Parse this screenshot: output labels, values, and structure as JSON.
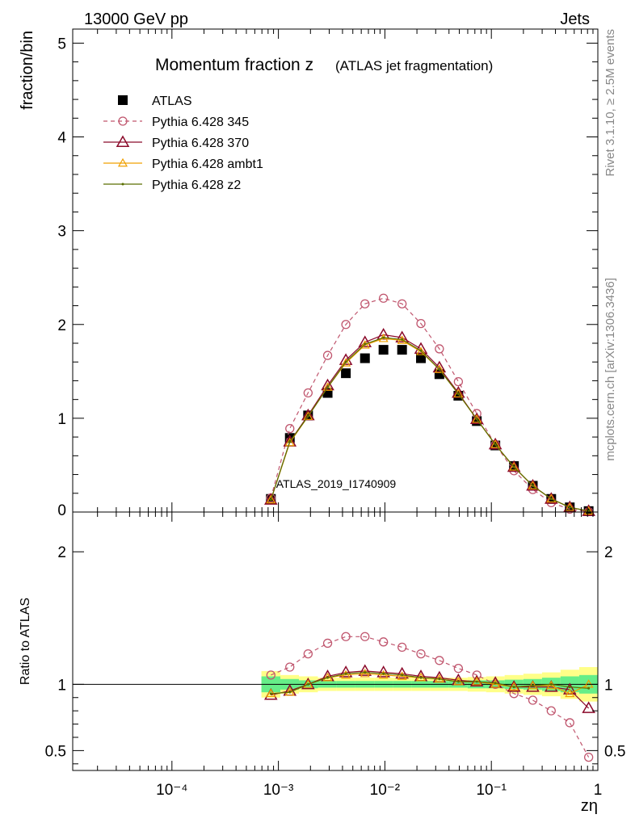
{
  "header": {
    "left": "13000 GeV pp",
    "right": "Jets",
    "side_rivet": "Rivet 3.1.10, ≥ 2.5M events",
    "side_mcplots": "mcplots.cern.ch [arXiv:1306.3436]",
    "watermark": "ATLAS_2019_I1740909"
  },
  "chart_data": {
    "type": "line",
    "title_main": "Momentum fraction z",
    "title_sub": "(ATLAS jet fragmentation)",
    "ylabel": "fraction/bin",
    "ratio_ylabel": "Ratio to ATLAS",
    "xlabel": "zη",
    "xscale": "log",
    "xlim": [
      1.17e-05,
      1.0
    ],
    "ylim": [
      0,
      5.15
    ],
    "ratio_ylim": [
      0.35,
      2.3
    ],
    "x_tick_labels": [
      "10⁻⁴",
      "10⁻³",
      "10⁻²",
      "10⁻¹",
      "1"
    ],
    "y_tick_labels": [
      "1",
      "2",
      "3",
      "4",
      "5"
    ],
    "y_zero_label": "0",
    "ratio_tick_labels": [
      "0.5",
      "1",
      "2"
    ],
    "x": [
      0.00085,
      0.00128,
      0.0019,
      0.0029,
      0.0043,
      0.0065,
      0.0097,
      0.0145,
      0.0218,
      0.0325,
      0.049,
      0.073,
      0.109,
      0.163,
      0.245,
      0.365,
      0.545,
      0.82
    ],
    "series": [
      {
        "name": "ATLAS",
        "color": "#000000",
        "marker": "square",
        "values": [
          0.14,
          0.79,
          1.03,
          1.27,
          1.48,
          1.64,
          1.73,
          1.73,
          1.64,
          1.47,
          1.24,
          0.97,
          0.71,
          0.49,
          0.28,
          0.14,
          0.05,
          0.01
        ]
      },
      {
        "name": "Pythia 6.428 345",
        "color": "#c0566e",
        "marker": "circle",
        "dash": true,
        "values": [
          0.15,
          0.89,
          1.27,
          1.67,
          2.0,
          2.22,
          2.28,
          2.22,
          2.01,
          1.74,
          1.39,
          1.05,
          0.72,
          0.44,
          0.24,
          0.1,
          0.03,
          0.004
        ],
        "ratio": [
          1.07,
          1.13,
          1.23,
          1.31,
          1.36,
          1.36,
          1.32,
          1.28,
          1.23,
          1.18,
          1.12,
          1.07,
          1.0,
          0.93,
          0.88,
          0.8,
          0.71,
          0.45
        ]
      },
      {
        "name": "Pythia 6.428 370",
        "color": "#8b0a2a",
        "marker": "triangle",
        "values": [
          0.13,
          0.75,
          1.03,
          1.35,
          1.62,
          1.81,
          1.89,
          1.86,
          1.74,
          1.54,
          1.27,
          0.99,
          0.72,
          0.48,
          0.28,
          0.14,
          0.05,
          0.01
        ],
        "ratio": [
          0.92,
          0.95,
          1.0,
          1.06,
          1.09,
          1.1,
          1.09,
          1.08,
          1.06,
          1.05,
          1.03,
          1.02,
          1.01,
          0.98,
          0.98,
          0.98,
          0.96,
          0.82
        ]
      },
      {
        "name": "Pythia 6.428 ambt1",
        "color": "#f0a000",
        "marker": "triangle-small",
        "values": [
          0.13,
          0.74,
          1.02,
          1.33,
          1.59,
          1.78,
          1.85,
          1.83,
          1.71,
          1.52,
          1.26,
          0.99,
          0.72,
          0.48,
          0.28,
          0.14,
          0.05,
          0.01
        ],
        "ratio": [
          0.93,
          0.94,
          1.0,
          1.05,
          1.07,
          1.08,
          1.07,
          1.06,
          1.05,
          1.04,
          1.02,
          1.02,
          1.0,
          0.98,
          0.99,
          0.99,
          0.93,
          1.0
        ]
      },
      {
        "name": "Pythia 6.428 z2",
        "color": "#5a6e00",
        "marker": "dot",
        "values": [
          0.13,
          0.75,
          1.02,
          1.33,
          1.6,
          1.79,
          1.86,
          1.84,
          1.72,
          1.52,
          1.26,
          0.99,
          0.72,
          0.48,
          0.28,
          0.14,
          0.05,
          0.01
        ],
        "ratio": [
          0.93,
          0.94,
          1.0,
          1.05,
          1.08,
          1.09,
          1.08,
          1.07,
          1.05,
          1.04,
          1.02,
          1.02,
          1.01,
          0.98,
          0.99,
          1.0,
          0.98,
          0.97
        ]
      }
    ],
    "ratio_band_green": [
      0.06,
      0.04,
      0.03,
      0.025,
      0.025,
      0.025,
      0.025,
      0.025,
      0.025,
      0.025,
      0.025,
      0.03,
      0.03,
      0.035,
      0.04,
      0.05,
      0.06,
      0.07
    ],
    "ratio_band_yellow": [
      0.1,
      0.07,
      0.06,
      0.05,
      0.05,
      0.05,
      0.05,
      0.05,
      0.05,
      0.05,
      0.05,
      0.055,
      0.06,
      0.07,
      0.08,
      0.09,
      0.11,
      0.13
    ]
  }
}
